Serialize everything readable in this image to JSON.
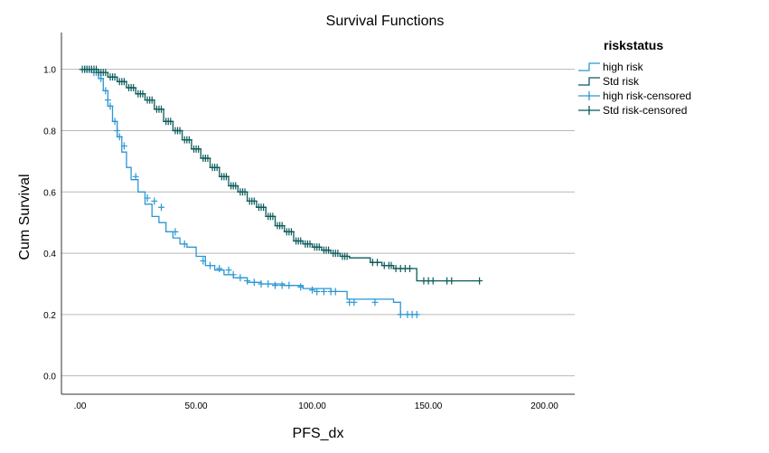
{
  "chart_data": {
    "type": "line",
    "title": "Survival Functions",
    "xlabel": "PFS_dx",
    "ylabel": "Cum Survival",
    "xlim": [
      -8,
      213
    ],
    "ylim": [
      -0.06,
      1.12
    ],
    "x_ticks": [
      ".00",
      "50.00",
      "100.00",
      "150.00",
      "200.00"
    ],
    "x_tick_values": [
      0,
      50,
      100,
      150,
      200
    ],
    "y_ticks": [
      "0.0",
      "0.2",
      "0.4",
      "0.6",
      "0.8",
      "1.0"
    ],
    "y_tick_values": [
      0,
      0.2,
      0.4,
      0.6,
      0.8,
      1.0
    ],
    "grid": "horizontal",
    "legend": {
      "title": "riskstatus",
      "position": "right",
      "entries": [
        {
          "label": "high risk",
          "kind": "step",
          "color": "#2a96d4"
        },
        {
          "label": "Std risk",
          "kind": "step",
          "color": "#0b5a5a"
        },
        {
          "label": "high risk-censored",
          "kind": "censor",
          "color": "#2a96d4"
        },
        {
          "label": "Std risk-censored",
          "kind": "censor",
          "color": "#0b5a5a"
        }
      ]
    },
    "series": [
      {
        "name": "high risk",
        "color": "#2a96d4",
        "steps": [
          [
            0,
            1.0
          ],
          [
            5,
            0.99
          ],
          [
            8,
            0.97
          ],
          [
            10,
            0.93
          ],
          [
            12,
            0.88
          ],
          [
            14,
            0.83
          ],
          [
            16,
            0.78
          ],
          [
            18,
            0.73
          ],
          [
            20,
            0.68
          ],
          [
            22,
            0.64
          ],
          [
            25,
            0.6
          ],
          [
            28,
            0.56
          ],
          [
            31,
            0.52
          ],
          [
            34,
            0.5
          ],
          [
            37,
            0.47
          ],
          [
            40,
            0.45
          ],
          [
            43,
            0.43
          ],
          [
            46,
            0.42
          ],
          [
            50,
            0.39
          ],
          [
            54,
            0.36
          ],
          [
            58,
            0.345
          ],
          [
            62,
            0.33
          ],
          [
            66,
            0.32
          ],
          [
            72,
            0.305
          ],
          [
            78,
            0.3
          ],
          [
            88,
            0.295
          ],
          [
            96,
            0.285
          ],
          [
            108,
            0.275
          ],
          [
            115,
            0.25
          ],
          [
            135,
            0.24
          ],
          [
            138,
            0.2
          ],
          [
            145,
            0.2
          ]
        ],
        "censored": [
          [
            2,
            1.0
          ],
          [
            3,
            1.0
          ],
          [
            4,
            1.0
          ],
          [
            6,
            0.99
          ],
          [
            7,
            0.99
          ],
          [
            9,
            0.97
          ],
          [
            11,
            0.93
          ],
          [
            12,
            0.9
          ],
          [
            13,
            0.88
          ],
          [
            15,
            0.83
          ],
          [
            16,
            0.8
          ],
          [
            17,
            0.78
          ],
          [
            19,
            0.75
          ],
          [
            24,
            0.65
          ],
          [
            29,
            0.58
          ],
          [
            32,
            0.57
          ],
          [
            35,
            0.55
          ],
          [
            41,
            0.47
          ],
          [
            45,
            0.43
          ],
          [
            53,
            0.375
          ],
          [
            56,
            0.36
          ],
          [
            60,
            0.35
          ],
          [
            64,
            0.345
          ],
          [
            66,
            0.33
          ],
          [
            69,
            0.32
          ],
          [
            72,
            0.31
          ],
          [
            75,
            0.305
          ],
          [
            78,
            0.3
          ],
          [
            81,
            0.3
          ],
          [
            84,
            0.295
          ],
          [
            87,
            0.295
          ],
          [
            90,
            0.295
          ],
          [
            95,
            0.29
          ],
          [
            100,
            0.28
          ],
          [
            102,
            0.275
          ],
          [
            105,
            0.275
          ],
          [
            108,
            0.275
          ],
          [
            110,
            0.275
          ],
          [
            116,
            0.24
          ],
          [
            118,
            0.24
          ],
          [
            127,
            0.24
          ],
          [
            138,
            0.2
          ],
          [
            141,
            0.2
          ],
          [
            143,
            0.2
          ],
          [
            145,
            0.2
          ]
        ]
      },
      {
        "name": "Std risk",
        "color": "#0b5a5a",
        "steps": [
          [
            0,
            1.0
          ],
          [
            8,
            0.99
          ],
          [
            12,
            0.975
          ],
          [
            16,
            0.96
          ],
          [
            20,
            0.94
          ],
          [
            24,
            0.92
          ],
          [
            28,
            0.9
          ],
          [
            32,
            0.87
          ],
          [
            36,
            0.83
          ],
          [
            40,
            0.8
          ],
          [
            44,
            0.77
          ],
          [
            48,
            0.74
          ],
          [
            52,
            0.71
          ],
          [
            56,
            0.68
          ],
          [
            60,
            0.65
          ],
          [
            64,
            0.62
          ],
          [
            68,
            0.6
          ],
          [
            72,
            0.57
          ],
          [
            76,
            0.55
          ],
          [
            80,
            0.52
          ],
          [
            84,
            0.49
          ],
          [
            88,
            0.47
          ],
          [
            92,
            0.44
          ],
          [
            96,
            0.43
          ],
          [
            100,
            0.42
          ],
          [
            104,
            0.41
          ],
          [
            108,
            0.4
          ],
          [
            112,
            0.39
          ],
          [
            116,
            0.385
          ],
          [
            125,
            0.37
          ],
          [
            130,
            0.36
          ],
          [
            135,
            0.35
          ],
          [
            145,
            0.31
          ],
          [
            172,
            0.31
          ]
        ],
        "censored": [
          [
            1,
            1.0
          ],
          [
            2,
            1.0
          ],
          [
            3,
            1.0
          ],
          [
            4,
            1.0
          ],
          [
            5,
            1.0
          ],
          [
            6,
            1.0
          ],
          [
            7,
            1.0
          ],
          [
            8,
            0.99
          ],
          [
            9,
            0.99
          ],
          [
            10,
            0.99
          ],
          [
            11,
            0.99
          ],
          [
            13,
            0.975
          ],
          [
            14,
            0.975
          ],
          [
            15,
            0.975
          ],
          [
            17,
            0.96
          ],
          [
            18,
            0.96
          ],
          [
            19,
            0.96
          ],
          [
            21,
            0.94
          ],
          [
            22,
            0.94
          ],
          [
            23,
            0.94
          ],
          [
            25,
            0.92
          ],
          [
            26,
            0.92
          ],
          [
            27,
            0.92
          ],
          [
            29,
            0.9
          ],
          [
            30,
            0.9
          ],
          [
            31,
            0.9
          ],
          [
            33,
            0.87
          ],
          [
            34,
            0.87
          ],
          [
            35,
            0.87
          ],
          [
            37,
            0.83
          ],
          [
            38,
            0.83
          ],
          [
            39,
            0.83
          ],
          [
            41,
            0.8
          ],
          [
            42,
            0.8
          ],
          [
            43,
            0.8
          ],
          [
            45,
            0.77
          ],
          [
            46,
            0.77
          ],
          [
            47,
            0.77
          ],
          [
            49,
            0.74
          ],
          [
            50,
            0.74
          ],
          [
            51,
            0.74
          ],
          [
            53,
            0.71
          ],
          [
            54,
            0.71
          ],
          [
            55,
            0.71
          ],
          [
            57,
            0.68
          ],
          [
            58,
            0.68
          ],
          [
            59,
            0.68
          ],
          [
            61,
            0.65
          ],
          [
            62,
            0.65
          ],
          [
            63,
            0.65
          ],
          [
            65,
            0.62
          ],
          [
            66,
            0.62
          ],
          [
            67,
            0.62
          ],
          [
            69,
            0.6
          ],
          [
            70,
            0.6
          ],
          [
            71,
            0.6
          ],
          [
            73,
            0.57
          ],
          [
            74,
            0.57
          ],
          [
            75,
            0.57
          ],
          [
            77,
            0.55
          ],
          [
            78,
            0.55
          ],
          [
            79,
            0.55
          ],
          [
            81,
            0.52
          ],
          [
            82,
            0.52
          ],
          [
            83,
            0.52
          ],
          [
            85,
            0.49
          ],
          [
            86,
            0.49
          ],
          [
            87,
            0.49
          ],
          [
            89,
            0.47
          ],
          [
            90,
            0.47
          ],
          [
            91,
            0.47
          ],
          [
            93,
            0.44
          ],
          [
            94,
            0.44
          ],
          [
            95,
            0.44
          ],
          [
            97,
            0.43
          ],
          [
            98,
            0.43
          ],
          [
            99,
            0.43
          ],
          [
            101,
            0.42
          ],
          [
            102,
            0.42
          ],
          [
            103,
            0.42
          ],
          [
            105,
            0.41
          ],
          [
            106,
            0.41
          ],
          [
            107,
            0.41
          ],
          [
            109,
            0.4
          ],
          [
            110,
            0.4
          ],
          [
            111,
            0.4
          ],
          [
            113,
            0.39
          ],
          [
            114,
            0.39
          ],
          [
            115,
            0.39
          ],
          [
            126,
            0.37
          ],
          [
            128,
            0.37
          ],
          [
            131,
            0.36
          ],
          [
            133,
            0.36
          ],
          [
            134,
            0.36
          ],
          [
            136,
            0.35
          ],
          [
            138,
            0.35
          ],
          [
            140,
            0.35
          ],
          [
            142,
            0.35
          ],
          [
            148,
            0.31
          ],
          [
            150,
            0.31
          ],
          [
            152,
            0.31
          ],
          [
            158,
            0.31
          ],
          [
            160,
            0.31
          ],
          [
            172,
            0.31
          ]
        ]
      }
    ]
  }
}
